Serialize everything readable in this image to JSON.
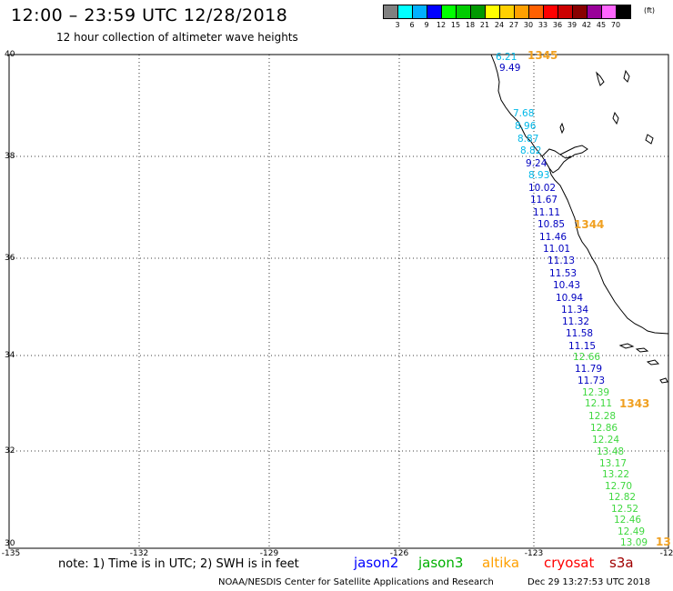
{
  "header": {
    "title": "12:00 – 23:59 UTC 12/28/2018",
    "subtitle": "12 hour collection of altimeter wave heights"
  },
  "scale": {
    "colors": [
      "#808080",
      "#00ffff",
      "#00b0ff",
      "#0000ff",
      "#00ff00",
      "#00cc00",
      "#009900",
      "#ffff00",
      "#ffd000",
      "#ffa000",
      "#ff6000",
      "#ff0000",
      "#cc0000",
      "#880000",
      "#990099",
      "#ff66ff",
      "#000000"
    ],
    "labels": [
      "3",
      "6",
      "9",
      "12",
      "15",
      "18",
      "21",
      "24",
      "27",
      "30",
      "33",
      "36",
      "39",
      "42",
      "45",
      "70"
    ],
    "unit": "(ft)"
  },
  "axes": {
    "lat_labels": [
      "40",
      "38",
      "36",
      "34",
      "32",
      "30"
    ],
    "lon_labels": [
      "-135",
      "-132",
      "-129",
      "-126",
      "-123",
      "-12"
    ]
  },
  "swh_values": [
    {
      "t": "6.21",
      "c": "#00b8e8"
    },
    {
      "t": "9.49",
      "c": "#0000c0"
    },
    {
      "t": "7.68",
      "c": "#00b8e8"
    },
    {
      "t": "8.96",
      "c": "#00b8e8"
    },
    {
      "t": "8.87",
      "c": "#00b8e8"
    },
    {
      "t": "8.82",
      "c": "#00b8e8"
    },
    {
      "t": "9.24",
      "c": "#0000c0"
    },
    {
      "t": "8.93",
      "c": "#00b8e8"
    },
    {
      "t": "10.02",
      "c": "#0000c0"
    },
    {
      "t": "11.67",
      "c": "#0000c0"
    },
    {
      "t": "11.11",
      "c": "#0000c0"
    },
    {
      "t": "10.85",
      "c": "#0000c0"
    },
    {
      "t": "11.46",
      "c": "#0000c0"
    },
    {
      "t": "11.01",
      "c": "#0000c0"
    },
    {
      "t": "11.13",
      "c": "#0000c0"
    },
    {
      "t": "11.53",
      "c": "#0000c0"
    },
    {
      "t": "10.43",
      "c": "#0000c0"
    },
    {
      "t": "10.94",
      "c": "#0000c0"
    },
    {
      "t": "11.34",
      "c": "#0000c0"
    },
    {
      "t": "11.32",
      "c": "#0000c0"
    },
    {
      "t": "11.58",
      "c": "#0000c0"
    },
    {
      "t": "11.15",
      "c": "#0000c0"
    },
    {
      "t": "12.66",
      "c": "#40d840"
    },
    {
      "t": "11.79",
      "c": "#0000c0"
    },
    {
      "t": "11.73",
      "c": "#0000c0"
    },
    {
      "t": "12.39",
      "c": "#40d840"
    },
    {
      "t": "12.11",
      "c": "#40d840"
    },
    {
      "t": "12.28",
      "c": "#40d840"
    },
    {
      "t": "12.86",
      "c": "#40d840"
    },
    {
      "t": "12.24",
      "c": "#40d840"
    },
    {
      "t": "13.48",
      "c": "#40d840"
    },
    {
      "t": "13.17",
      "c": "#40d840"
    },
    {
      "t": "13.22",
      "c": "#40d840"
    },
    {
      "t": "12.70",
      "c": "#40d840"
    },
    {
      "t": "12.82",
      "c": "#40d840"
    },
    {
      "t": "12.52",
      "c": "#40d840"
    },
    {
      "t": "12.46",
      "c": "#40d840"
    },
    {
      "t": "12.49",
      "c": "#40d840"
    },
    {
      "t": "13.09",
      "c": "#40d840"
    }
  ],
  "cycle_labels": [
    "1345",
    "1344",
    "1343",
    "13"
  ],
  "footer": {
    "note": "note:  1) Time is in UTC;  2) SWH is in feet",
    "missions": [
      {
        "name": "jason2",
        "color": "#0000ff"
      },
      {
        "name": "jason3",
        "color": "#00b000"
      },
      {
        "name": "altika",
        "color": "#ffa000"
      },
      {
        "name": "cryosat",
        "color": "#ff0000"
      },
      {
        "name": "s3a",
        "color": "#a00000"
      }
    ],
    "credit": "NOAA/NESDIS Center for Satellite Applications and Research",
    "timestamp": "Dec 29 13:27:53 UTC 2018"
  }
}
